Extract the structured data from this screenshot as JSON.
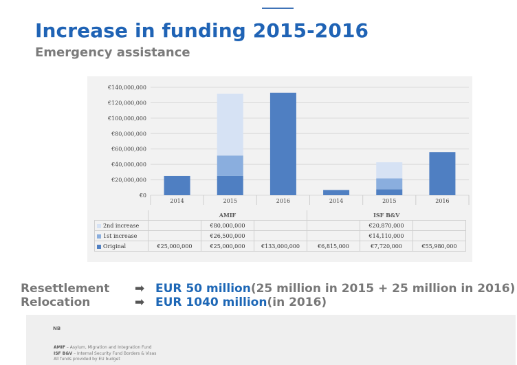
{
  "top_mark": "",
  "title": "Increase  in funding 2015-2016",
  "subtitle": "Emergency assistance",
  "chart_data": {
    "type": "bar",
    "stacked": true,
    "categories": [
      "2014",
      "2015",
      "2016",
      "2014",
      "2015",
      "2016"
    ],
    "groups": [
      {
        "name": "AMIF",
        "categories": [
          "2014",
          "2015",
          "2016"
        ]
      },
      {
        "name": "ISF B&V",
        "categories": [
          "2014",
          "2015",
          "2016"
        ]
      }
    ],
    "series": [
      {
        "name": "Original",
        "color": "#4f7fc2",
        "values": [
          25000000,
          25000000,
          133000000,
          6815000,
          7720000,
          55980000
        ],
        "labels": [
          "€25,000,000",
          "€25,000,000",
          "€133,000,000",
          "€6,815,000",
          "€7,720,000",
          "€55,980,000"
        ]
      },
      {
        "name": "1st increase",
        "color": "#8aaede",
        "values": [
          0,
          26500000,
          0,
          0,
          14110000,
          0
        ],
        "labels": [
          "",
          "€26,500,000",
          "",
          "",
          "€14,110,000",
          ""
        ]
      },
      {
        "name": "2nd increase",
        "color": "#d6e2f4",
        "values": [
          0,
          80000000,
          0,
          0,
          20870000,
          0
        ],
        "labels": [
          "",
          "€80,000,000",
          "",
          "",
          "€20,870,000",
          ""
        ]
      }
    ],
    "yticks": [
      "€0",
      "€20,000,000",
      "€40,000,000",
      "€60,000,000",
      "€80,000,000",
      "€100,000,000",
      "€120,000,000",
      "€140,000,000"
    ],
    "ylim": [
      0,
      140000000
    ],
    "grid": true,
    "legend": "table"
  },
  "resettlement": {
    "label": "Resettlement",
    "arrow": "➡",
    "highlight": "EUR 50 million",
    "tail": " (25 million in 2015 + 25 million in 2016)"
  },
  "relocation": {
    "label": "Relocation",
    "arrow": "➡",
    "highlight": "EUR 1040 million",
    "tail": " (in 2016)"
  },
  "notes": {
    "label": "NB",
    "amif_abbr": "AMIF",
    "amif_text": " – Asylum, Migration and Integration Fund",
    "isf_abbr": "ISF B&V",
    "isf_text": " – Internal Security Fund Borders & Visas",
    "footer": "All funds provided by EU budget"
  }
}
